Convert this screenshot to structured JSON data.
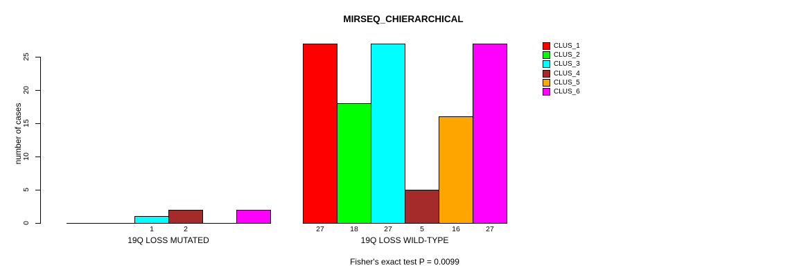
{
  "chart_data": {
    "type": "bar",
    "title": "MIRSEQ_CHIERARCHICAL",
    "ylabel": "number of cases",
    "xlabel": "",
    "ylim": [
      0,
      25
    ],
    "yticks": [
      0,
      5,
      10,
      15,
      20,
      25
    ],
    "grid": false,
    "legend_position": "right",
    "categories": [
      "19Q LOSS MUTATED",
      "19Q LOSS WILD-TYPE"
    ],
    "series": [
      {
        "name": "CLUS_1",
        "color": "#FF0000",
        "values": [
          0,
          27
        ]
      },
      {
        "name": "CLUS_2",
        "color": "#00FF00",
        "values": [
          0,
          18
        ]
      },
      {
        "name": "CLUS_3",
        "color": "#00FFFF",
        "values": [
          1,
          27
        ]
      },
      {
        "name": "CLUS_4",
        "color": "#A52A2A",
        "values": [
          2,
          5
        ]
      },
      {
        "name": "CLUS_5",
        "color": "#FFA500",
        "values": [
          0,
          16
        ]
      },
      {
        "name": "CLUS_6",
        "color": "#FF00FF",
        "values": [
          2,
          27
        ]
      }
    ],
    "bar_value_labels": [
      [
        "",
        "",
        "1",
        "2",
        "",
        ""
      ],
      [
        "27",
        "18",
        "27",
        "5",
        "16",
        "27"
      ]
    ],
    "annotation": "Fisher's exact test P = 0.0099"
  }
}
